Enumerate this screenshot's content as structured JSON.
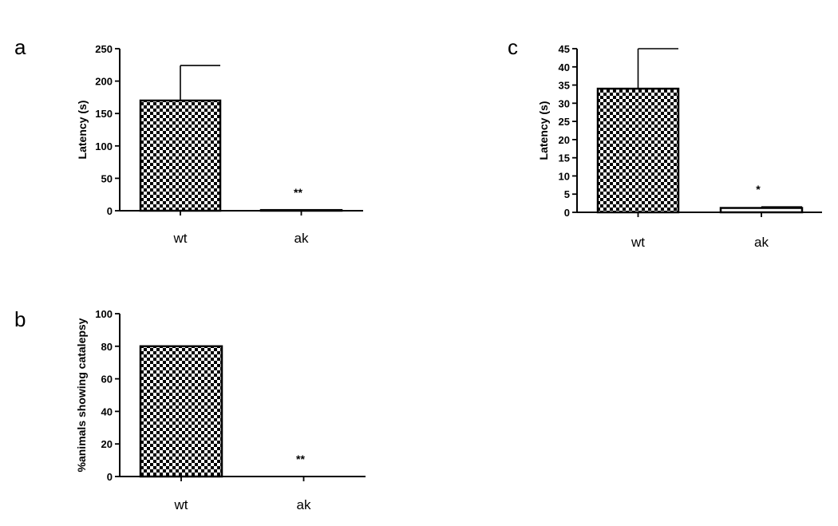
{
  "chart_data": [
    {
      "panel": "a",
      "type": "bar",
      "categories": [
        "wt",
        "ak"
      ],
      "values": [
        170,
        1
      ],
      "error": [
        54,
        0
      ],
      "ylabel": "Latency (s)",
      "ylim": [
        0,
        250
      ],
      "yticks": [
        0,
        50,
        100,
        150,
        200,
        250
      ],
      "annotations": [
        "",
        "**"
      ],
      "bar_fill": [
        "checkered",
        "white"
      ]
    },
    {
      "panel": "b",
      "type": "bar",
      "categories": [
        "wt",
        "ak"
      ],
      "values": [
        80,
        0
      ],
      "error": [
        0,
        0
      ],
      "ylabel": "%animals showing catalepsy",
      "ylim": [
        0,
        100
      ],
      "yticks": [
        0,
        20,
        40,
        60,
        80,
        100
      ],
      "annotations": [
        "",
        "**"
      ],
      "bar_fill": [
        "checkered",
        "white"
      ]
    },
    {
      "panel": "c",
      "type": "bar",
      "categories": [
        "wt",
        "ak"
      ],
      "values": [
        34,
        1.2
      ],
      "error": [
        11,
        0.3
      ],
      "ylabel": "Latency (s)",
      "ylim": [
        0,
        45
      ],
      "yticks": [
        0,
        5,
        10,
        15,
        20,
        25,
        30,
        35,
        40,
        45
      ],
      "annotations": [
        "",
        "*"
      ],
      "bar_fill": [
        "checkered",
        "white"
      ]
    }
  ],
  "colors": {
    "ink": "#000000",
    "background": "#ffffff"
  }
}
